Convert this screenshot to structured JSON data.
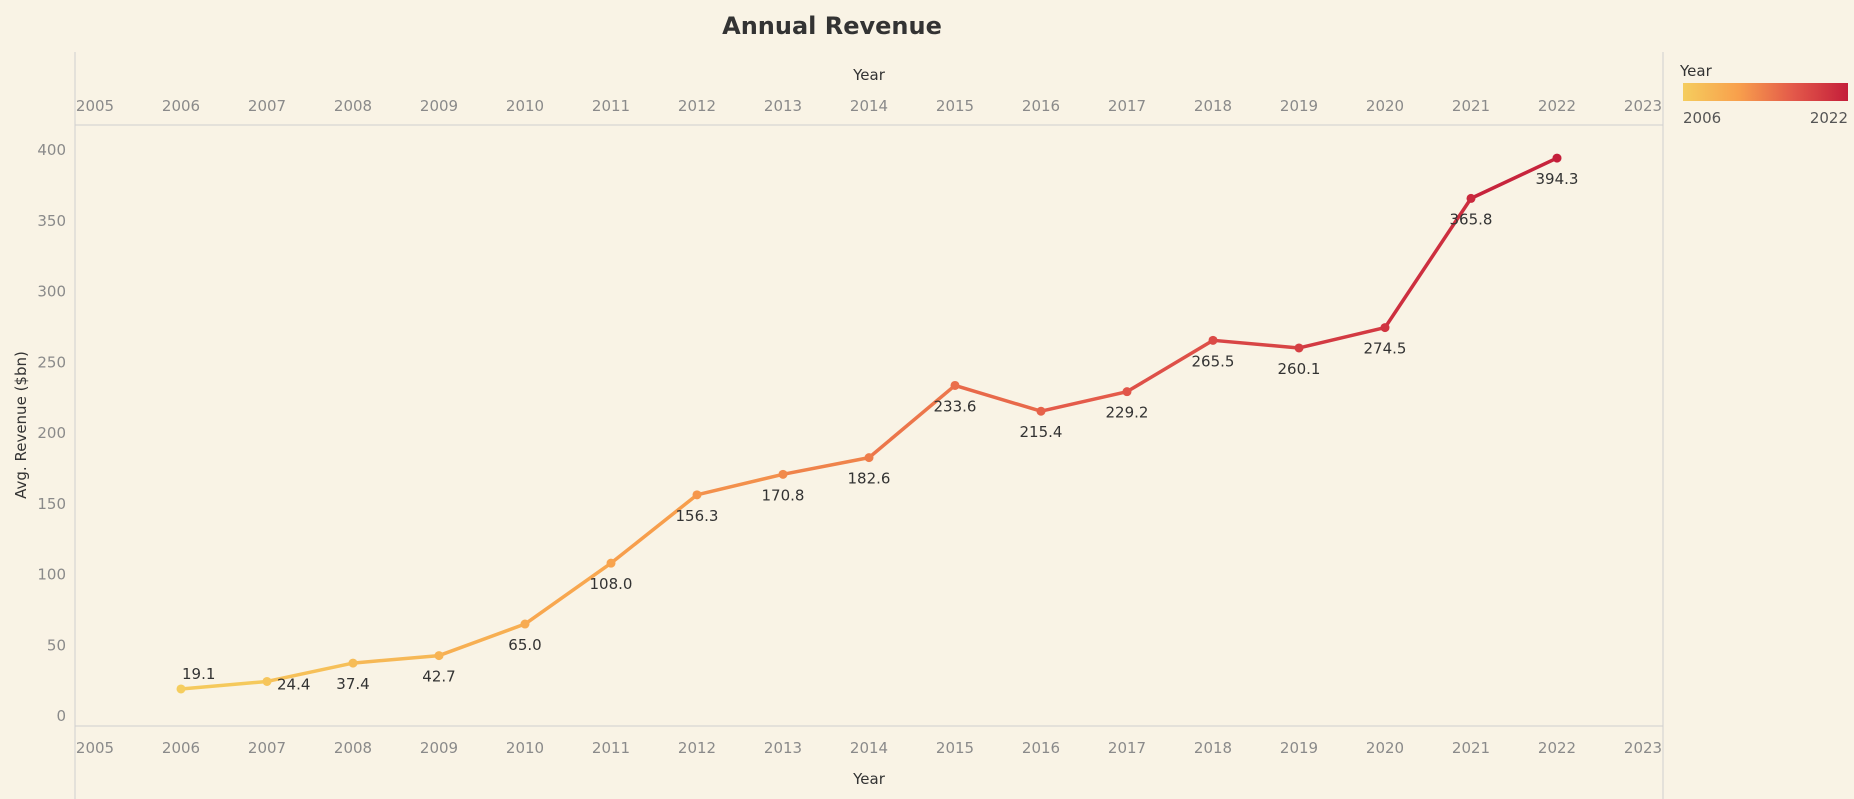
{
  "chart_data": {
    "type": "line",
    "title": "Annual Revenue",
    "xlabel": "Year",
    "ylabel": "Avg. Revenue ($bn)",
    "x_ticks": [
      "2005",
      "2006",
      "2007",
      "2008",
      "2009",
      "2010",
      "2011",
      "2012",
      "2013",
      "2014",
      "2015",
      "2016",
      "2017",
      "2018",
      "2019",
      "2020",
      "2021",
      "2022",
      "2023"
    ],
    "xlim": [
      2005,
      2023
    ],
    "y_ticks": [
      0,
      50,
      100,
      150,
      200,
      250,
      300,
      350,
      400
    ],
    "ylim": [
      0,
      400
    ],
    "grid": false,
    "x": [
      2006,
      2007,
      2008,
      2009,
      2010,
      2011,
      2012,
      2013,
      2014,
      2015,
      2016,
      2017,
      2018,
      2019,
      2020,
      2021,
      2022
    ],
    "values": [
      19.1,
      24.4,
      37.4,
      42.7,
      65.0,
      108.0,
      156.3,
      170.8,
      182.6,
      233.6,
      215.4,
      229.2,
      265.5,
      260.1,
      274.5,
      365.8,
      394.3
    ],
    "value_labels": [
      "19.1",
      "24.4",
      "37.4",
      "42.7",
      "65.0",
      "108.0",
      "156.3",
      "170.8",
      "182.6",
      "233.6",
      "215.4",
      "229.2",
      "265.5",
      "260.1",
      "274.5",
      "365.8",
      "394.3"
    ],
    "color_encoding": {
      "field": "Year",
      "min_label": "2006",
      "max_label": "2022",
      "colors": [
        "#f5cd5e",
        "#f8a04c",
        "#e3594a",
        "#c41e3a"
      ]
    },
    "legend_placement": "top-right"
  }
}
